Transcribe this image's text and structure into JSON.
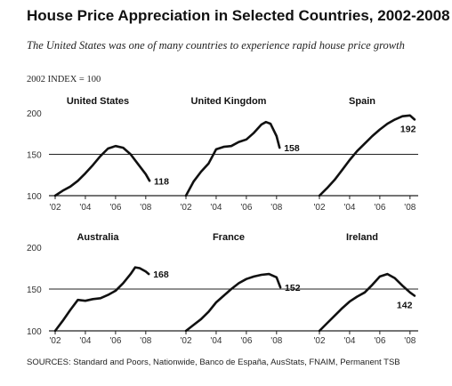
{
  "header": {
    "title": "House Price Appreciation in Selected Countries, 2002-2008",
    "subtitle": "The United States was one of many countries to experience rapid house price growth",
    "index_label": "2002 INDEX = 100"
  },
  "source": "SOURCES: Standard and Poors, Nationwide, Banco de España, AusStats, FNAIM, Permanent TSB",
  "chart_data": [
    {
      "type": "line",
      "title": "United States",
      "x": [
        2002,
        2002.5,
        2003,
        2003.5,
        2004,
        2004.5,
        2005,
        2005.5,
        2006,
        2006.5,
        2007,
        2007.5,
        2008,
        2008.25
      ],
      "values": [
        100,
        106,
        111,
        118,
        127,
        137,
        148,
        157,
        160,
        158,
        150,
        138,
        126,
        118
      ],
      "end_label": "118",
      "xticks": [
        "'02",
        "'04",
        "'06",
        "'08"
      ],
      "yticks": [
        100,
        150,
        200
      ],
      "ylim": [
        100,
        200
      ]
    },
    {
      "type": "line",
      "title": "United Kingdom",
      "x": [
        2002,
        2002.5,
        2003,
        2003.5,
        2004,
        2004.5,
        2005,
        2005.5,
        2006,
        2006.5,
        2007,
        2007.3,
        2007.6,
        2008,
        2008.2
      ],
      "values": [
        100,
        117,
        129,
        139,
        156,
        159,
        160,
        165,
        168,
        176,
        186,
        189,
        187,
        172,
        158
      ],
      "end_label": "158",
      "xticks": [
        "'02",
        "'04",
        "'06",
        "'08"
      ],
      "yticks": [
        100,
        150,
        200
      ],
      "ylim": [
        100,
        200
      ]
    },
    {
      "type": "line",
      "title": "Spain",
      "x": [
        2002,
        2002.5,
        2003,
        2003.5,
        2004,
        2004.5,
        2005,
        2005.5,
        2006,
        2006.5,
        2007,
        2007.5,
        2008,
        2008.3
      ],
      "values": [
        100,
        109,
        119,
        131,
        143,
        154,
        163,
        172,
        180,
        187,
        192,
        196,
        197,
        192
      ],
      "end_label": "192",
      "xticks": [
        "'02",
        "'04",
        "'06",
        "'08"
      ],
      "yticks": [
        100,
        150,
        200
      ],
      "ylim": [
        100,
        200
      ]
    },
    {
      "type": "line",
      "title": "Australia",
      "x": [
        2002,
        2002.5,
        2003,
        2003.5,
        2004,
        2004.5,
        2005,
        2005.5,
        2006,
        2006.5,
        2007,
        2007.3,
        2007.6,
        2008,
        2008.2
      ],
      "values": [
        100,
        112,
        125,
        137,
        136,
        138,
        139,
        143,
        148,
        157,
        168,
        176,
        175,
        171,
        168
      ],
      "end_label": "168",
      "xticks": [
        "'02",
        "'04",
        "'06",
        "'08"
      ],
      "yticks": [
        100,
        150,
        200
      ],
      "ylim": [
        100,
        200
      ]
    },
    {
      "type": "line",
      "title": "France",
      "x": [
        2002,
        2002.5,
        2003,
        2003.5,
        2004,
        2004.5,
        2005,
        2005.5,
        2006,
        2006.5,
        2007,
        2007.5,
        2008,
        2008.25
      ],
      "values": [
        100,
        107,
        114,
        123,
        134,
        142,
        150,
        157,
        162,
        165,
        167,
        168,
        164,
        152
      ],
      "end_label": "152",
      "xticks": [
        "'02",
        "'04",
        "'06",
        "'08"
      ],
      "yticks": [
        100,
        150,
        200
      ],
      "ylim": [
        100,
        200
      ]
    },
    {
      "type": "line",
      "title": "Ireland",
      "x": [
        2002,
        2002.5,
        2003,
        2003.5,
        2004,
        2004.5,
        2005,
        2005.5,
        2006,
        2006.5,
        2007,
        2007.5,
        2008,
        2008.3
      ],
      "values": [
        100,
        109,
        118,
        127,
        135,
        141,
        146,
        155,
        165,
        168,
        163,
        154,
        146,
        142
      ],
      "end_label": "142",
      "xticks": [
        "'02",
        "'04",
        "'06",
        "'08"
      ],
      "yticks": [
        100,
        150,
        200
      ],
      "ylim": [
        100,
        200
      ]
    }
  ]
}
